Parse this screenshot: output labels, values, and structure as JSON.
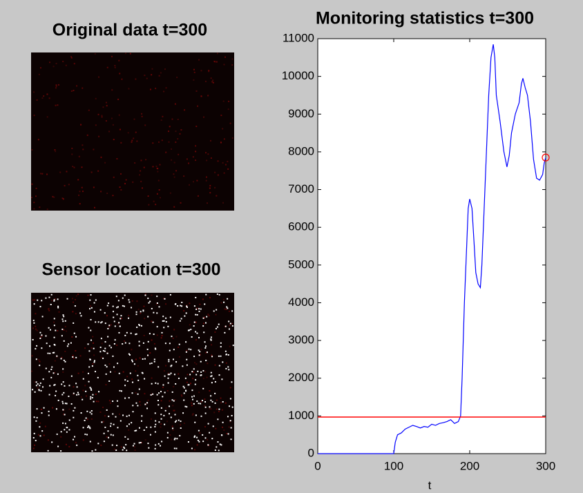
{
  "images": [
    {
      "title": "Original data t=300"
    },
    {
      "title": "Sensor location t=300"
    }
  ],
  "chart_data": {
    "type": "line",
    "title": "Monitoring statistics t=300",
    "xlabel": "t",
    "x": [
      0,
      50,
      100,
      102,
      105,
      110,
      115,
      120,
      125,
      130,
      135,
      140,
      145,
      150,
      155,
      160,
      165,
      170,
      175,
      180,
      185,
      188,
      190,
      193,
      196,
      198,
      200,
      203,
      206,
      208,
      211,
      214,
      216,
      219,
      222,
      225,
      228,
      231,
      233,
      235,
      240,
      245,
      249,
      252,
      255,
      260,
      265,
      268,
      270,
      273,
      276,
      280,
      284,
      288,
      292,
      296,
      298,
      300
    ],
    "series": [
      {
        "color": "#0000ff",
        "values": [
          0,
          0,
          0,
          300,
          500,
          550,
          650,
          700,
          750,
          720,
          680,
          720,
          700,
          780,
          750,
          800,
          820,
          850,
          900,
          800,
          850,
          1000,
          2000,
          4000,
          5500,
          6500,
          6750,
          6500,
          5500,
          4800,
          4500,
          4400,
          5000,
          6500,
          8000,
          9500,
          10500,
          10850,
          10500,
          9500,
          8800,
          8000,
          7600,
          7900,
          8500,
          9000,
          9300,
          9800,
          9950,
          9700,
          9500,
          8800,
          7800,
          7300,
          7250,
          7400,
          7700,
          7850
        ]
      }
    ],
    "threshold": {
      "value": 970,
      "color": "#ff0000"
    },
    "marker": {
      "x": 300,
      "y": 7850,
      "color": "#ff0000"
    },
    "xlim": [
      0,
      300
    ],
    "xticks": [
      0,
      100,
      200,
      300
    ],
    "ylim": [
      0,
      11000
    ],
    "yticks": [
      0,
      1000,
      2000,
      3000,
      4000,
      5000,
      6000,
      7000,
      8000,
      9000,
      10000,
      11000
    ]
  }
}
